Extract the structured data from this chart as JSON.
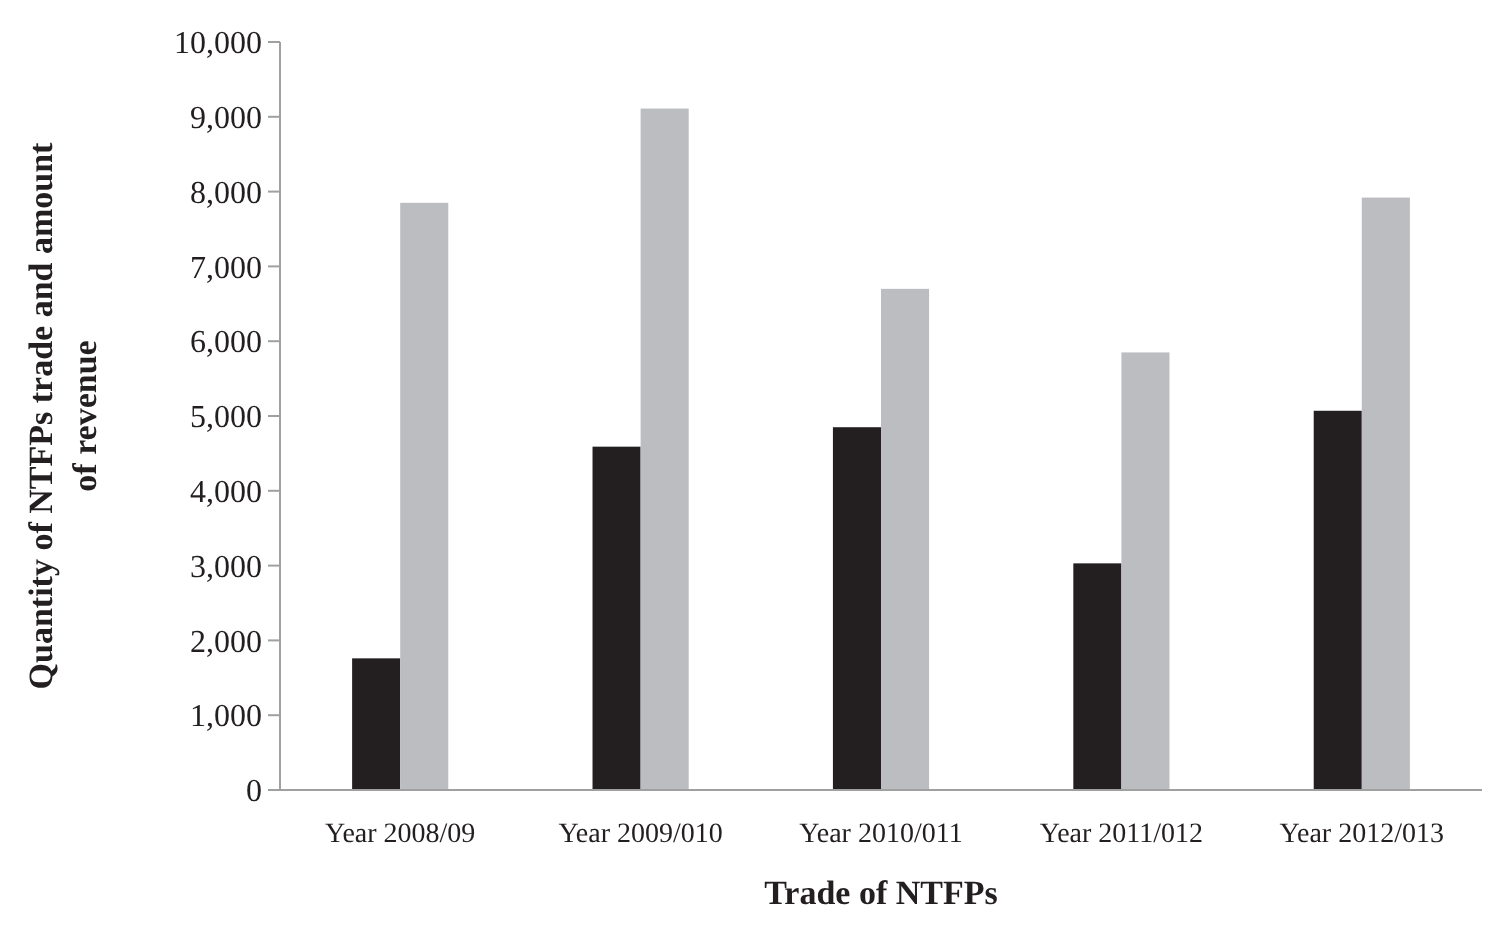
{
  "chart_data": {
    "type": "bar",
    "xlabel": "Trade of NTFPs",
    "ylabel": "Quantity of NTFPs trade and amount of revenue",
    "categories": [
      "Year 2008/09",
      "Year 2009/010",
      "Year 2010/011",
      "Year 2011/012",
      "Year 2012/013"
    ],
    "series": [
      {
        "color": "#231f20",
        "values": [
          1760,
          4590,
          4850,
          3030,
          5070
        ]
      },
      {
        "color": "#bcbdc0",
        "values": [
          7850,
          9110,
          6700,
          5850,
          7920
        ]
      }
    ],
    "ylim": [
      0,
      10000
    ],
    "yticks": [
      {
        "value": 0,
        "label": "0"
      },
      {
        "value": 1000,
        "label": "1,000"
      },
      {
        "value": 2000,
        "label": "2,000"
      },
      {
        "value": 3000,
        "label": "3,000"
      },
      {
        "value": 4000,
        "label": "4,000"
      },
      {
        "value": 5000,
        "label": "5,000"
      },
      {
        "value": 6000,
        "label": "6,000"
      },
      {
        "value": 7000,
        "label": "7,000"
      },
      {
        "value": 8000,
        "label": "8,000"
      },
      {
        "value": 9000,
        "label": "9,000"
      },
      {
        "value": 10000,
        "label": "10,000"
      }
    ]
  }
}
